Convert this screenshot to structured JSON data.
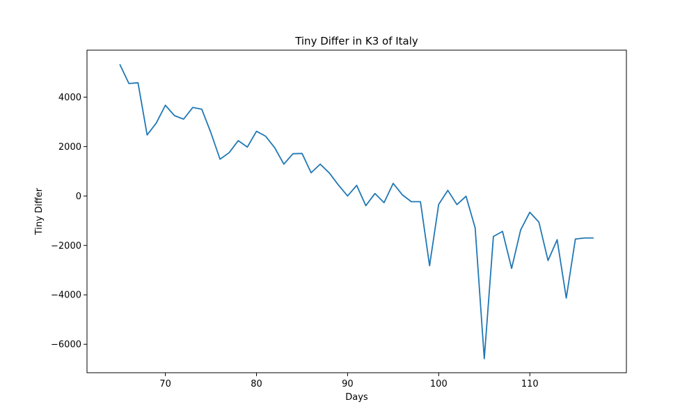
{
  "chart_data": {
    "type": "line",
    "title": "Tiny Differ in K3 of Italy",
    "xlabel": "Days",
    "ylabel": "Tiny Differ",
    "xlim": [
      61.4,
      120.6
    ],
    "ylim": [
      -7150,
      5900
    ],
    "xticks": [
      70,
      80,
      90,
      100,
      110
    ],
    "yticks": [
      -6000,
      -4000,
      -2000,
      0,
      2000,
      4000
    ],
    "xtick_labels": [
      "70",
      "80",
      "90",
      "100",
      "110"
    ],
    "ytick_labels": [
      "−6000",
      "−4000",
      "−2000",
      "0",
      "2000",
      "4000"
    ],
    "grid": false,
    "line_color": "#1f77b4",
    "series": [
      {
        "x": [
          65,
          66,
          67,
          68,
          69,
          70,
          71,
          72,
          73,
          74,
          75,
          76,
          77,
          78,
          79,
          80,
          81,
          82,
          83,
          84,
          85,
          86,
          87,
          88,
          89,
          90,
          91,
          92,
          93,
          94,
          95,
          96,
          97,
          98,
          99,
          100,
          101,
          102,
          103,
          104,
          105,
          106,
          107,
          108,
          109,
          110,
          111,
          112,
          113,
          114,
          115,
          116,
          117
        ],
        "values": [
          5330,
          4550,
          4580,
          2470,
          2950,
          3670,
          3250,
          3110,
          3580,
          3510,
          2560,
          1490,
          1750,
          2240,
          1980,
          2620,
          2420,
          1950,
          1290,
          1710,
          1720,
          940,
          1290,
          930,
          440,
          0,
          430,
          -390,
          100,
          -270,
          510,
          50,
          -230,
          -230,
          -2820,
          -340,
          230,
          -350,
          -10,
          -1290,
          -6580,
          -1640,
          -1430,
          -2930,
          -1370,
          -660,
          -1060,
          -2610,
          -1770,
          -4130,
          -1740,
          -1700,
          -1700
        ]
      }
    ]
  }
}
